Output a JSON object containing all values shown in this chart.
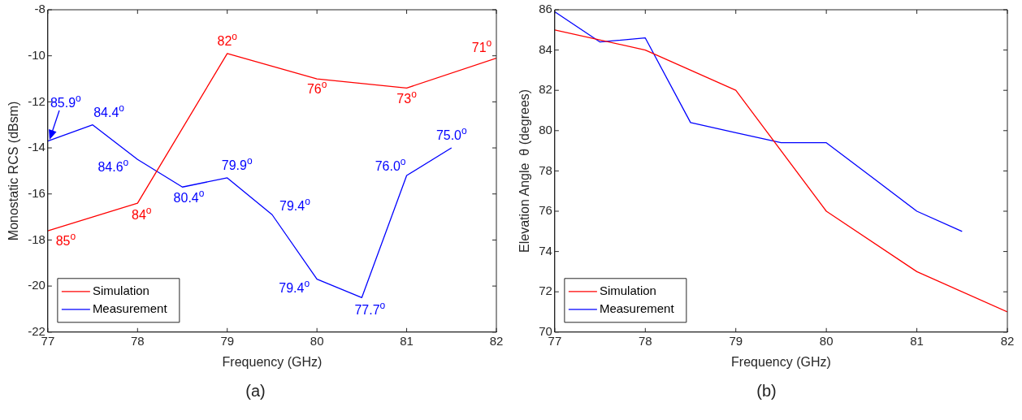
{
  "chart_data": [
    {
      "type": "line",
      "title": "(a)",
      "xlabel": "Frequency (GHz)",
      "ylabel": "Monostatic RCS (dBsm)",
      "xlim": [
        77,
        82
      ],
      "xticks": [
        77,
        78,
        79,
        80,
        81,
        82
      ],
      "ylim": [
        -22,
        -8
      ],
      "yticks": [
        -22,
        -20,
        -18,
        -16,
        -14,
        -12,
        -10,
        -8
      ],
      "grid": false,
      "legend": "bottom left",
      "series": [
        {
          "name": "Simulation",
          "color": "#ff0000",
          "x": [
            77,
            78,
            79,
            80,
            81,
            82
          ],
          "values": [
            -17.6,
            -16.4,
            -9.9,
            -11,
            -11.4,
            -10.1
          ]
        },
        {
          "name": "Measurement",
          "color": "#0000ff",
          "x": [
            77,
            77.5,
            78,
            78.5,
            79,
            79.5,
            80,
            80.5,
            81,
            81.5
          ],
          "values": [
            -13.7,
            -13,
            -14.5,
            -15.7,
            -15.3,
            -16.9,
            -19.7,
            -20.5,
            -15.2,
            -14
          ]
        }
      ],
      "annotations": [
        {
          "text": "85$^{o}$",
          "x": 77,
          "y": -17.6
        },
        {
          "text": "84$^{o}$",
          "x": 78,
          "y": -16.4
        },
        {
          "text": "82$^{o}$",
          "x": 79,
          "y": -9.9
        },
        {
          "text": "76$^{o}$",
          "x": 80,
          "y": -11
        },
        {
          "text": "73$^{o}$",
          "x": 81,
          "y": -11.4
        },
        {
          "text": "71$^{o}$",
          "x": 82,
          "y": -10.1
        },
        {
          "text": "85.9$^{o}$",
          "x": 77,
          "y": -13.7
        },
        {
          "text": "84.4$^{o}$",
          "x": 77.5,
          "y": -13
        },
        {
          "text": "84.6$^{o}$",
          "x": 78,
          "y": -14.5
        },
        {
          "text": "80.4$^{o}$",
          "x": 78.5,
          "y": -15.7
        },
        {
          "text": "79.9$^{o}$",
          "x": 79,
          "y": -15.3
        },
        {
          "text": "79.4$^{o}$",
          "x": 79.5,
          "y": -16.9
        },
        {
          "text": "79.4$^{o}$",
          "x": 80,
          "y": -19.7
        },
        {
          "text": "77.7$^{o}$",
          "x": 80.5,
          "y": -20.5
        },
        {
          "text": "76.0$^{o}$",
          "x": 81,
          "y": -15.2
        },
        {
          "text": "75.0$^{o}$",
          "x": 81.5,
          "y": -14
        }
      ]
    },
    {
      "type": "line",
      "title": "(b)",
      "xlabel": "Frequency (GHz)",
      "ylabel": "Elevation Angle  θ (degrees)",
      "xlim": [
        77,
        82
      ],
      "xticks": [
        77,
        78,
        79,
        80,
        81,
        82
      ],
      "ylim": [
        70,
        86
      ],
      "yticks": [
        70,
        72,
        74,
        76,
        78,
        80,
        82,
        84,
        86
      ],
      "grid": false,
      "legend": "bottom left",
      "series": [
        {
          "name": "Simulation",
          "color": "#ff0000",
          "x": [
            77,
            78,
            79,
            80,
            81,
            82
          ],
          "values": [
            85,
            84,
            82,
            76,
            73,
            71
          ]
        },
        {
          "name": "Measurement",
          "color": "#0000ff",
          "x": [
            77,
            77.5,
            78,
            78.5,
            79,
            79.5,
            80,
            80.5,
            81,
            81.5
          ],
          "values": [
            85.9,
            84.4,
            84.6,
            80.4,
            79.9,
            79.4,
            79.4,
            77.7,
            76,
            75
          ]
        }
      ]
    }
  ]
}
